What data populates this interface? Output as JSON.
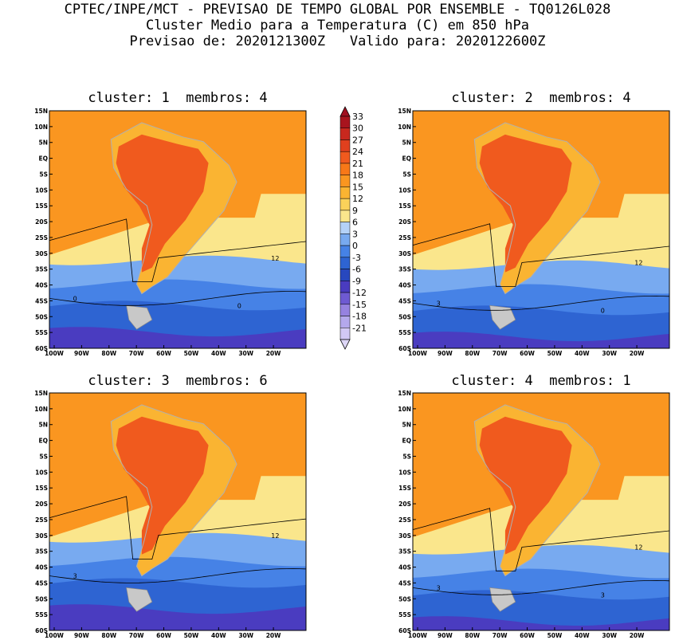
{
  "header": {
    "line1": "CPTEC/INPE/MCT - PREVISAO DE TEMPO GLOBAL POR ENSEMBLE - TQ0126L028",
    "line2": "Cluster Medio para a Temperatura (C) em 850 hPa",
    "line3": "Previsao de: 2020121300Z   Valido para: 2020122600Z"
  },
  "panels": [
    {
      "title": "cluster: 1  membros: 4",
      "cold_label": "0",
      "cold_label2": "0"
    },
    {
      "title": "cluster: 2  membros: 4",
      "cold_label": "3",
      "cold_label2": "0"
    },
    {
      "title": "cluster: 3  membros: 6",
      "cold_label": "3",
      "cold_label2": ""
    },
    {
      "title": "cluster: 4  membros: 1",
      "cold_label": "3",
      "cold_label2": "3"
    }
  ],
  "contour_label_12": "12",
  "lat_labels": [
    "15N",
    "10N",
    "5N",
    "EQ",
    "5S",
    "10S",
    "15S",
    "20S",
    "25S",
    "30S",
    "35S",
    "40S",
    "45S",
    "50S",
    "55S",
    "60S"
  ],
  "lon_labels": [
    "100W",
    "90W",
    "80W",
    "70W",
    "60W",
    "50W",
    "40W",
    "30W",
    "20W"
  ],
  "colorbar": {
    "levels": [
      "33",
      "30",
      "27",
      "24",
      "21",
      "18",
      "15",
      "12",
      "9",
      "6",
      "3",
      "0",
      "-3",
      "-6",
      "-9",
      "-12",
      "-15",
      "-18",
      "-21"
    ],
    "colors": [
      "#a8141e",
      "#c8281e",
      "#e0401e",
      "#f05a1e",
      "#f87818",
      "#fa9620",
      "#fab432",
      "#fad25a",
      "#fae68c",
      "#b4d2f8",
      "#78aaf0",
      "#4682e6",
      "#2e64d2",
      "#2848be",
      "#4a3cc0",
      "#6e5ad2",
      "#9682e0",
      "#b4a8ec",
      "#d2c8f4"
    ],
    "top_color": "#a01020",
    "bottom_color": "#ddd6f6"
  },
  "colors": {
    "hot": "#f05a1e",
    "warm": "#fa9620",
    "mild": "#fab432",
    "pale": "#fae68c",
    "cool": "#78aaf0",
    "cold": "#4682e6",
    "colder": "#2e64d2",
    "coldest": "#4a3cc0",
    "land_outline": "#b0b0b0"
  }
}
